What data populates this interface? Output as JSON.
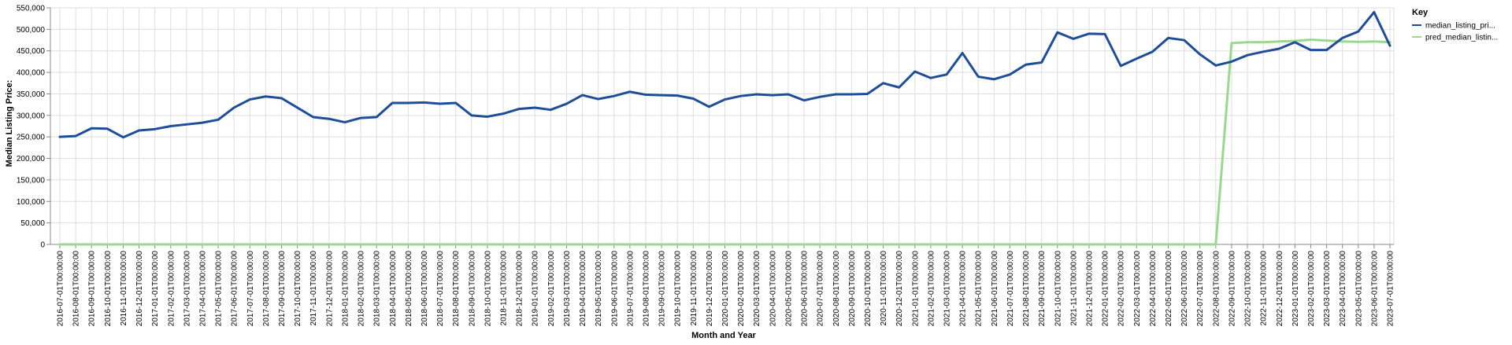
{
  "chart_data": {
    "type": "line",
    "xlabel": "Month and Year",
    "ylabel": "Median Listing Price:",
    "ylim": [
      0,
      550000
    ],
    "yticks": [
      "0",
      "50,000",
      "100,000",
      "150,000",
      "200,000",
      "250,000",
      "300,000",
      "350,000",
      "400,000",
      "450,000",
      "500,000",
      "550,000"
    ],
    "ytick_values": [
      0,
      50000,
      100000,
      150000,
      200000,
      250000,
      300000,
      350000,
      400000,
      450000,
      500000,
      550000
    ],
    "grid": true,
    "legend_position": "top-right",
    "legend_title": "Key",
    "x": [
      "2016-07-01T00:00:00",
      "2016-08-01T00:00:00",
      "2016-09-01T00:00:00",
      "2016-10-01T00:00:00",
      "2016-11-01T00:00:00",
      "2016-12-01T00:00:00",
      "2017-01-01T00:00:00",
      "2017-02-01T00:00:00",
      "2017-03-01T00:00:00",
      "2017-04-01T00:00:00",
      "2017-05-01T00:00:00",
      "2017-06-01T00:00:00",
      "2017-07-01T00:00:00",
      "2017-08-01T00:00:00",
      "2017-09-01T00:00:00",
      "2017-10-01T00:00:00",
      "2017-11-01T00:00:00",
      "2017-12-01T00:00:00",
      "2018-01-01T00:00:00",
      "2018-02-01T00:00:00",
      "2018-03-01T00:00:00",
      "2018-04-01T00:00:00",
      "2018-05-01T00:00:00",
      "2018-06-01T00:00:00",
      "2018-07-01T00:00:00",
      "2018-08-01T00:00:00",
      "2018-09-01T00:00:00",
      "2018-10-01T00:00:00",
      "2018-11-01T00:00:00",
      "2018-12-01T00:00:00",
      "2019-01-01T00:00:00",
      "2019-02-01T00:00:00",
      "2019-03-01T00:00:00",
      "2019-04-01T00:00:00",
      "2019-05-01T00:00:00",
      "2019-06-01T00:00:00",
      "2019-07-01T00:00:00",
      "2019-08-01T00:00:00",
      "2019-09-01T00:00:00",
      "2019-10-01T00:00:00",
      "2019-11-01T00:00:00",
      "2019-12-01T00:00:00",
      "2020-01-01T00:00:00",
      "2020-02-01T00:00:00",
      "2020-03-01T00:00:00",
      "2020-04-01T00:00:00",
      "2020-05-01T00:00:00",
      "2020-06-01T00:00:00",
      "2020-07-01T00:00:00",
      "2020-08-01T00:00:00",
      "2020-09-01T00:00:00",
      "2020-10-01T00:00:00",
      "2020-11-01T00:00:00",
      "2020-12-01T00:00:00",
      "2021-01-01T00:00:00",
      "2021-02-01T00:00:00",
      "2021-03-01T00:00:00",
      "2021-04-01T00:00:00",
      "2021-05-01T00:00:00",
      "2021-06-01T00:00:00",
      "2021-07-01T00:00:00",
      "2021-08-01T00:00:00",
      "2021-09-01T00:00:00",
      "2021-10-01T00:00:00",
      "2021-11-01T00:00:00",
      "2021-12-01T00:00:00",
      "2022-01-01T00:00:00",
      "2022-02-01T00:00:00",
      "2022-03-01T00:00:00",
      "2022-04-01T00:00:00",
      "2022-05-01T00:00:00",
      "2022-06-01T00:00:00",
      "2022-07-01T00:00:00",
      "2022-08-01T00:00:00",
      "2022-09-01T00:00:00",
      "2022-10-01T00:00:00",
      "2022-11-01T00:00:00",
      "2022-12-01T00:00:00",
      "2023-01-01T00:00:00",
      "2023-02-01T00:00:00",
      "2023-03-01T00:00:00",
      "2023-04-01T00:00:00",
      "2023-05-01T00:00:00",
      "2023-06-01T00:00:00",
      "2023-07-01T00:00:00"
    ],
    "series": [
      {
        "name": "median_listing_pri...",
        "color": "#1f4e99",
        "values": [
          250000,
          252000,
          270000,
          269000,
          249000,
          265000,
          268000,
          275000,
          279000,
          283000,
          290000,
          318000,
          337000,
          344000,
          340000,
          318000,
          296000,
          292000,
          284000,
          294000,
          296000,
          329000,
          329000,
          330000,
          327000,
          329000,
          300000,
          297000,
          304000,
          315000,
          318000,
          313000,
          327000,
          347000,
          338000,
          345000,
          355000,
          348000,
          347000,
          346000,
          339000,
          320000,
          337000,
          345000,
          349000,
          347000,
          349000,
          335000,
          343000,
          349000,
          349000,
          350000,
          375000,
          365000,
          402000,
          387000,
          395000,
          445000,
          390000,
          384000,
          395000,
          418000,
          423000,
          493000,
          478000,
          490000,
          489000,
          415000,
          432000,
          448000,
          480000,
          475000,
          442000,
          416000,
          425000,
          440000,
          448000,
          455000,
          470000,
          452000,
          452000,
          480000,
          495000,
          540000,
          462000
        ]
      },
      {
        "name": "pred_median_listin...",
        "color": "#98d98e",
        "values": [
          0,
          0,
          0,
          0,
          0,
          0,
          0,
          0,
          0,
          0,
          0,
          0,
          0,
          0,
          0,
          0,
          0,
          0,
          0,
          0,
          0,
          0,
          0,
          0,
          0,
          0,
          0,
          0,
          0,
          0,
          0,
          0,
          0,
          0,
          0,
          0,
          0,
          0,
          0,
          0,
          0,
          0,
          0,
          0,
          0,
          0,
          0,
          0,
          0,
          0,
          0,
          0,
          0,
          0,
          0,
          0,
          0,
          0,
          0,
          0,
          0,
          0,
          0,
          0,
          0,
          0,
          0,
          0,
          0,
          0,
          0,
          0,
          0,
          0,
          468000,
          470000,
          470000,
          472000,
          473000,
          476000,
          474000,
          472000,
          471000,
          472000,
          470000
        ]
      }
    ]
  }
}
